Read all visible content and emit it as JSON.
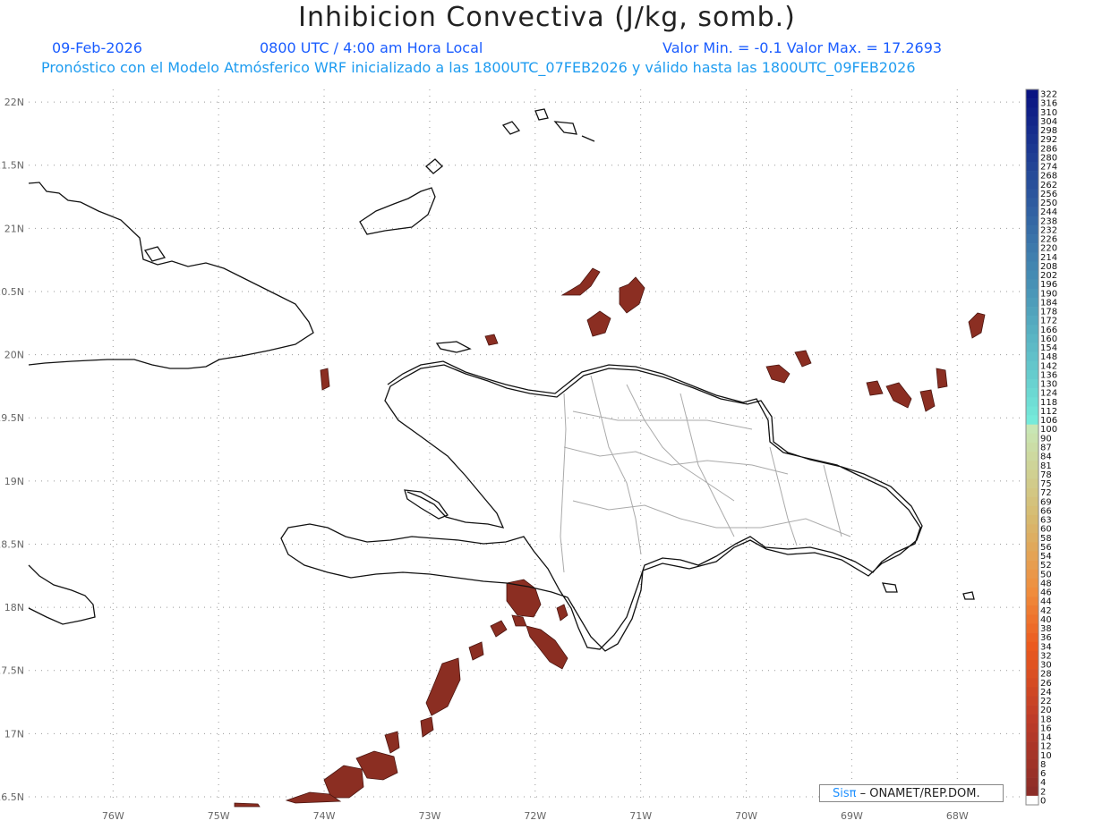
{
  "header": {
    "title": "Inhibicion Convectiva (J/kg, somb.)",
    "date": "09-Feb-2026",
    "time": "0800 UTC / 4:00 am Hora Local",
    "minmax": "Valor Min. = -0.1  Valor Max. = 17.2693",
    "model_line": "Pronóstico con el Modelo Atmósferico WRF inicializado a las 1800UTC_07FEB2026 y válido hasta las  1800UTC_09FEB2026"
  },
  "map": {
    "lat_labels": [
      "22N",
      "21.5N",
      "21N",
      "20.5N",
      "20N",
      "19.5N",
      "19N",
      "18.5N",
      "18N",
      "17.5N",
      "17N",
      "16.5N"
    ],
    "lon_labels": [
      "76W",
      "75W",
      "74W",
      "73W",
      "72W",
      "71W",
      "70W",
      "69W",
      "68W"
    ],
    "lat_range": [
      16.5,
      22
    ],
    "lon_range": [
      -76.8,
      -67.6
    ],
    "grid": "dotted",
    "shading_color": "#8b2e22"
  },
  "colorbar": {
    "labels": [
      "322",
      "316",
      "310",
      "304",
      "298",
      "292",
      "286",
      "280",
      "274",
      "268",
      "262",
      "256",
      "250",
      "244",
      "238",
      "232",
      "226",
      "220",
      "214",
      "208",
      "202",
      "196",
      "190",
      "184",
      "178",
      "172",
      "166",
      "160",
      "154",
      "148",
      "142",
      "136",
      "130",
      "124",
      "118",
      "112",
      "106",
      "100",
      "90",
      "87",
      "84",
      "81",
      "78",
      "75",
      "72",
      "69",
      "66",
      "63",
      "60",
      "58",
      "56",
      "54",
      "52",
      "50",
      "48",
      "46",
      "44",
      "42",
      "40",
      "38",
      "36",
      "34",
      "32",
      "30",
      "28",
      "26",
      "24",
      "22",
      "20",
      "18",
      "16",
      "14",
      "12",
      "10",
      "8",
      "6",
      "4",
      "2",
      "0"
    ]
  },
  "credit": {
    "sis": "Sisπ",
    "text": "– ONAMET/REP.DOM."
  }
}
